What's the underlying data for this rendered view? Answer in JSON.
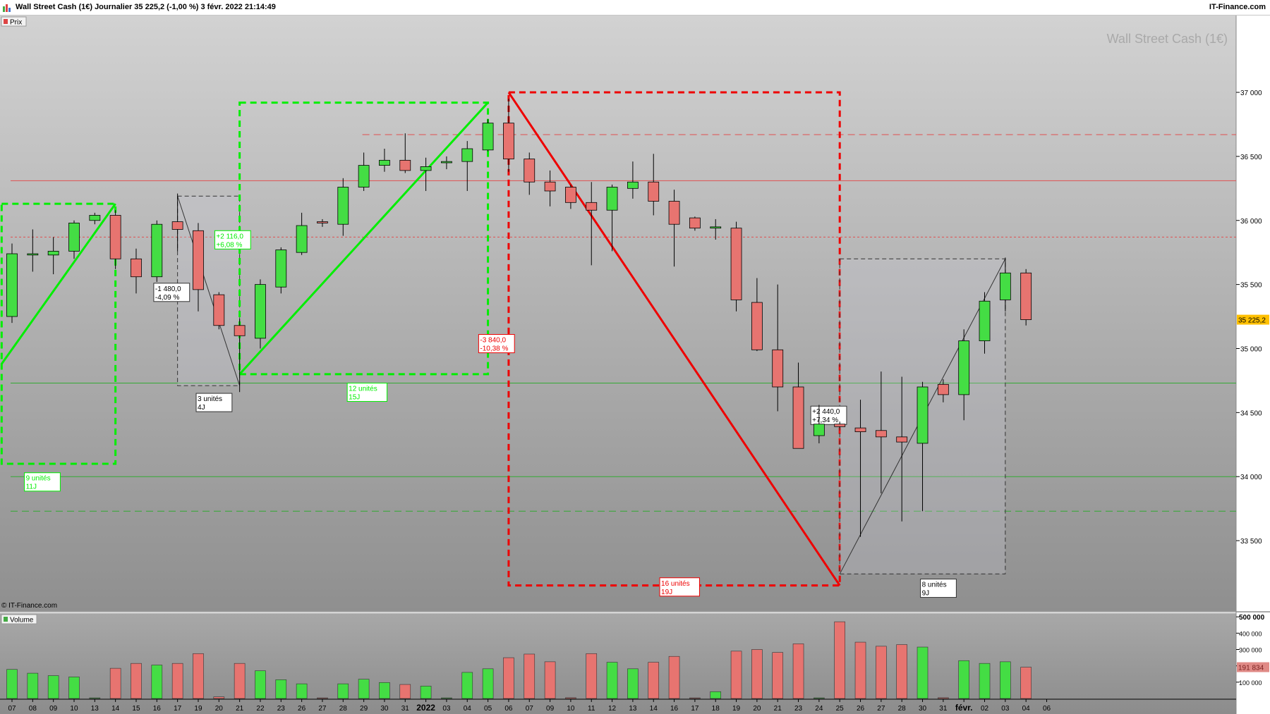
{
  "header": {
    "title": "Wall Street Cash (1€) Journalier 35 225,2 (-1,00 %) 3 févr. 2022 21:14:49",
    "brand": "IT-Finance.com"
  },
  "price_panel": {
    "label": "Prix",
    "watermark": "Wall Street Cash (1€)",
    "copyright": "© IT-Finance.com",
    "last_price_label": "35 225,2"
  },
  "volume_panel": {
    "label": "Volume",
    "last_volume_label": "191 834"
  },
  "colors": {
    "up": "#44dd44",
    "down": "#e77470",
    "bull_tool": "#00ee00",
    "bear_tool": "#ee0000",
    "background_top": "#d2d2d2",
    "background_bottom": "#8f8f8f"
  },
  "chart_data": [
    {
      "type": "candlestick",
      "title": "Wall Street Cash (1€)",
      "period": "Journalier",
      "ylim": [
        32950,
        37600
      ],
      "y_ticks": [
        33500,
        34000,
        34500,
        35000,
        35500,
        36000,
        36500,
        37000
      ],
      "y_tick_labels": [
        "33 500",
        "34 000",
        "34 500",
        "35 000",
        "35 500",
        "36 000",
        "36 500",
        "37 000"
      ],
      "x_labels": [
        "07",
        "08",
        "09",
        "10",
        "13",
        "14",
        "15",
        "16",
        "17",
        "19",
        "20",
        "21",
        "22",
        "23",
        "26",
        "27",
        "28",
        "29",
        "30",
        "31",
        "2022",
        "03",
        "04",
        "05",
        "06",
        "07",
        "09",
        "10",
        "11",
        "12",
        "13",
        "14",
        "16",
        "17",
        "18",
        "19",
        "20",
        "21",
        "23",
        "24",
        "25",
        "26",
        "27",
        "28",
        "30",
        "31",
        "févr.",
        "02",
        "03",
        "04",
        "06"
      ],
      "candles": [
        {
          "o": 35250,
          "h": 35820,
          "l": 35200,
          "c": 35740
        },
        {
          "o": 35730,
          "h": 35930,
          "l": 35600,
          "c": 35740
        },
        {
          "o": 35730,
          "h": 35870,
          "l": 35580,
          "c": 35760
        },
        {
          "o": 35760,
          "h": 36000,
          "l": 35700,
          "c": 35980
        },
        {
          "o": 36000,
          "h": 36060,
          "l": 35970,
          "c": 36040
        },
        {
          "o": 36040,
          "h": 36080,
          "l": 35620,
          "c": 35700
        },
        {
          "o": 35700,
          "h": 35780,
          "l": 35430,
          "c": 35560
        },
        {
          "o": 35560,
          "h": 36000,
          "l": 35520,
          "c": 35970
        },
        {
          "o": 35990,
          "h": 36210,
          "l": 35760,
          "c": 35930
        },
        {
          "o": 35920,
          "h": 35980,
          "l": 35290,
          "c": 35460
        },
        {
          "o": 35420,
          "h": 35440,
          "l": 35150,
          "c": 35180
        },
        {
          "o": 35180,
          "h": 35230,
          "l": 34660,
          "c": 35100
        },
        {
          "o": 35080,
          "h": 35540,
          "l": 35000,
          "c": 35500
        },
        {
          "o": 35480,
          "h": 35790,
          "l": 35430,
          "c": 35770
        },
        {
          "o": 35750,
          "h": 36060,
          "l": 35730,
          "c": 35960
        },
        {
          "o": 35990,
          "h": 36010,
          "l": 35950,
          "c": 35980
        },
        {
          "o": 35970,
          "h": 36330,
          "l": 35880,
          "c": 36260
        },
        {
          "o": 36260,
          "h": 36530,
          "l": 36230,
          "c": 36430
        },
        {
          "o": 36430,
          "h": 36560,
          "l": 36380,
          "c": 36470
        },
        {
          "o": 36470,
          "h": 36680,
          "l": 36370,
          "c": 36390
        },
        {
          "o": 36390,
          "h": 36490,
          "l": 36230,
          "c": 36420
        },
        {
          "o": 36450,
          "h": 36500,
          "l": 36400,
          "c": 36460
        },
        {
          "o": 36460,
          "h": 36620,
          "l": 36230,
          "c": 36560
        },
        {
          "o": 36550,
          "h": 36790,
          "l": 36540,
          "c": 36760
        },
        {
          "o": 36760,
          "h": 36950,
          "l": 36380,
          "c": 36480
        },
        {
          "o": 36480,
          "h": 36530,
          "l": 36200,
          "c": 36300
        },
        {
          "o": 36300,
          "h": 36390,
          "l": 36110,
          "c": 36230
        },
        {
          "o": 36260,
          "h": 36280,
          "l": 36090,
          "c": 36140
        },
        {
          "o": 36140,
          "h": 36300,
          "l": 35650,
          "c": 36080
        },
        {
          "o": 36080,
          "h": 36280,
          "l": 35760,
          "c": 36260
        },
        {
          "o": 36250,
          "h": 36460,
          "l": 36170,
          "c": 36300
        },
        {
          "o": 36300,
          "h": 36520,
          "l": 36040,
          "c": 36150
        },
        {
          "o": 36150,
          "h": 36240,
          "l": 35640,
          "c": 35970
        },
        {
          "o": 36020,
          "h": 36030,
          "l": 35920,
          "c": 35940
        },
        {
          "o": 35940,
          "h": 36010,
          "l": 35850,
          "c": 35950
        },
        {
          "o": 35940,
          "h": 35990,
          "l": 35290,
          "c": 35380
        },
        {
          "o": 35360,
          "h": 35550,
          "l": 34980,
          "c": 34990
        },
        {
          "o": 34990,
          "h": 35500,
          "l": 34510,
          "c": 34700
        },
        {
          "o": 34700,
          "h": 34890,
          "l": 34220,
          "c": 34220
        },
        {
          "o": 34320,
          "h": 34560,
          "l": 34260,
          "c": 34410
        },
        {
          "o": 34410,
          "h": 34430,
          "l": 34380,
          "c": 34390
        },
        {
          "o": 34380,
          "h": 34600,
          "l": 33530,
          "c": 34350
        },
        {
          "o": 34360,
          "h": 34820,
          "l": 33870,
          "c": 34310
        },
        {
          "o": 34310,
          "h": 34780,
          "l": 33650,
          "c": 34270
        },
        {
          "o": 34260,
          "h": 34740,
          "l": 33730,
          "c": 34700
        },
        {
          "o": 34720,
          "h": 34760,
          "l": 34580,
          "c": 34640
        },
        {
          "o": 34640,
          "h": 35150,
          "l": 34440,
          "c": 35060
        },
        {
          "o": 35060,
          "h": 35440,
          "l": 34960,
          "c": 35370
        },
        {
          "o": 35380,
          "h": 35710,
          "l": 35290,
          "c": 35590
        },
        {
          "o": 35590,
          "h": 35620,
          "l": 35180,
          "c": 35225.2
        }
      ]
    },
    {
      "type": "bar",
      "title": "Volume",
      "y_ticks": [
        100000,
        200000,
        300000,
        400000,
        500000
      ],
      "y_tick_labels": [
        "100 000",
        "200 000",
        "300 000",
        "400 000",
        "500 000"
      ],
      "values": [
        178000,
        155000,
        140000,
        132000,
        4000,
        185000,
        215000,
        205000,
        215000,
        275000,
        10000,
        215000,
        170000,
        115000,
        90000,
        4000,
        90000,
        118000,
        98000,
        86000,
        76000,
        4000,
        160000,
        182000,
        250000,
        272000,
        225000,
        5000,
        275000,
        222000,
        182000,
        222000,
        258000,
        4000,
        42000,
        290000,
        300000,
        282000,
        335000,
        4000,
        470000,
        345000,
        320000,
        330000,
        315000,
        5000,
        232000,
        215000,
        225000,
        191834
      ]
    }
  ],
  "annotations": {
    "levels": [
      {
        "price": 36670,
        "style": "dash-long",
        "color": "#e05050",
        "from_candle": 17
      },
      {
        "price": 36310,
        "style": "solid",
        "color": "#e05050",
        "from_candle": 0
      },
      {
        "price": 35870,
        "style": "dash-short",
        "color": "#e05050",
        "from_candle": 0
      },
      {
        "price": 34730,
        "style": "solid",
        "color": "#33aa33",
        "from_candle": 0
      },
      {
        "price": 34000,
        "style": "solid",
        "color": "#33aa33",
        "from_candle": 0
      },
      {
        "price": 33730,
        "style": "dash-long",
        "color": "#33aa33",
        "from_candle": 0
      }
    ],
    "boxes": [
      {
        "color": "#00ee00",
        "thick": true,
        "c0": -0.5,
        "c1": 5,
        "p0": 34100,
        "p1": 36130,
        "label": [
          "9 unités",
          "11J"
        ],
        "label_c": 0.6,
        "label_p": 34030,
        "trend": [
          [
            -0.5,
            34880
          ],
          [
            5,
            36130
          ]
        ]
      },
      {
        "color": "#333333",
        "thick": false,
        "c0": 8,
        "c1": 11,
        "p0": 34710,
        "p1": 36190,
        "label": [
          "3 unités",
          "4J"
        ],
        "label_c": 8.9,
        "label_p": 34650,
        "trend": [
          [
            8,
            36190
          ],
          [
            11,
            34710
          ]
        ],
        "pct": [
          "-1 480,0",
          "-4,09 %"
        ],
        "pct_c": 6.85,
        "pct_p": 35510
      },
      {
        "color": "#00ee00",
        "thick": true,
        "c0": 11,
        "c1": 23,
        "p0": 34800,
        "p1": 36920,
        "label": [
          "12 unités",
          "15J"
        ],
        "label_c": 16.2,
        "label_p": 34730,
        "trend": [
          [
            11,
            34800
          ],
          [
            23,
            36920
          ]
        ],
        "pct": [
          "+2 116,0",
          "+6,08 %"
        ],
        "pct_c": 9.8,
        "pct_p": 35920
      },
      {
        "color": "#ee0000",
        "thick": true,
        "c0": 24,
        "c1": 40,
        "p0": 33150,
        "p1": 37000,
        "label": [
          "16 unités",
          "19J"
        ],
        "label_c": 31.3,
        "label_p": 33210,
        "trend": [
          [
            24,
            37000
          ],
          [
            40,
            33150
          ]
        ],
        "pct": [
          "-3 840,0",
          "-10,38 %"
        ],
        "pct_c": 22.55,
        "pct_p": 35110
      },
      {
        "color": "#333333",
        "thick": false,
        "c0": 40,
        "c1": 48,
        "p0": 33240,
        "p1": 35700,
        "label": [
          "8 unités",
          "9J"
        ],
        "label_c": 43.9,
        "label_p": 33200,
        "trend": [
          [
            40,
            33240
          ],
          [
            48,
            35700
          ]
        ],
        "pct": [
          "+2 440,0",
          "+7,34 %"
        ],
        "pct_c": 38.6,
        "pct_p": 34550
      }
    ]
  }
}
